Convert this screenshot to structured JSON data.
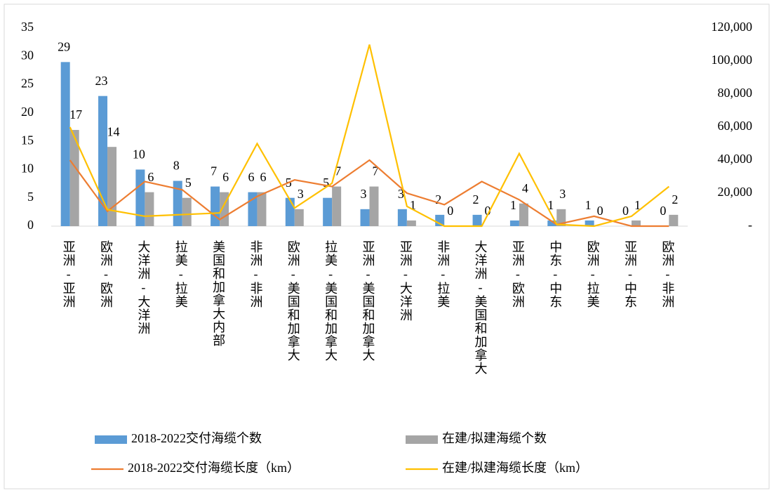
{
  "chart_data": {
    "type": "bar",
    "categories": [
      "亚洲-亚洲",
      "欧洲-欧洲",
      "大洋洲-大洋洲",
      "拉美-拉美",
      "美国和加拿大内部",
      "非洲-非洲",
      "欧洲-美国和加拿大",
      "拉美-美国和加拿大",
      "亚洲-美国和加拿大",
      "亚洲-大洋洲",
      "非洲-拉美",
      "大洋洲-美国和加拿大",
      "亚洲-欧洲",
      "中东-中东",
      "欧洲-拉美",
      "亚洲-中东",
      "欧洲-非洲"
    ],
    "series": [
      {
        "name": "2018-2022交付海缆个数",
        "color": "#5b9bd5",
        "kind": "bar",
        "values": [
          29,
          23,
          10,
          8,
          7,
          6,
          5,
          5,
          3,
          3,
          2,
          2,
          1,
          1,
          1,
          0,
          0
        ]
      },
      {
        "name": "在建/拟建海缆个数",
        "color": "#a5a5a5",
        "kind": "bar",
        "values": [
          17,
          14,
          6,
          5,
          6,
          6,
          3,
          7,
          7,
          1,
          0,
          0,
          4,
          3,
          0,
          1,
          2
        ]
      },
      {
        "name": "2018-2022交付海缆长度（km）",
        "color": "#ed7d31",
        "kind": "line",
        "axis": "y2",
        "values": [
          40000,
          9000,
          27000,
          22000,
          4000,
          18000,
          28000,
          24000,
          40000,
          20000,
          13000,
          27000,
          16000,
          1000,
          6000,
          0,
          0
        ]
      },
      {
        "name": "在建/拟建海缆长度（km）",
        "color": "#ffc000",
        "kind": "line",
        "axis": "y2",
        "values": [
          60000,
          10000,
          6000,
          7000,
          8000,
          50000,
          11000,
          26000,
          110000,
          12000,
          0,
          0,
          44000,
          1000,
          0,
          6000,
          24000
        ]
      }
    ],
    "ylim": [
      0,
      35
    ],
    "yticks": [
      0,
      5,
      10,
      15,
      20,
      25,
      30,
      35
    ],
    "y2lim": [
      0,
      120000
    ],
    "y2ticks": [
      {
        "value": 0,
        "label": "-"
      },
      {
        "value": 20000,
        "label": "20,000"
      },
      {
        "value": 40000,
        "label": "40,000"
      },
      {
        "value": 60000,
        "label": "60,000"
      },
      {
        "value": 80000,
        "label": "80,000"
      },
      {
        "value": 100000,
        "label": "100,000"
      },
      {
        "value": 120000,
        "label": "120,000"
      }
    ]
  }
}
